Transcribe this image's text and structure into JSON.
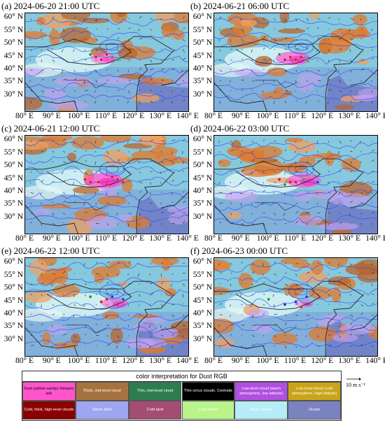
{
  "panels": [
    {
      "title": "(a) 2024-06-20 21:00 UTC",
      "dust": "weak",
      "points": [
        [
          104,
          46,
          "g"
        ],
        [
          106,
          45,
          "r"
        ],
        [
          108,
          44,
          "r"
        ],
        [
          110,
          46,
          "r"
        ],
        [
          112,
          45,
          "g"
        ],
        [
          114,
          44,
          "g"
        ]
      ]
    },
    {
      "title": "(b) 2024-06-21 06:00 UTC",
      "dust": "moderate",
      "points": [
        [
          104,
          46,
          "g"
        ],
        [
          106,
          44,
          "r"
        ],
        [
          108,
          45,
          "r"
        ],
        [
          110,
          44,
          "r"
        ],
        [
          112,
          45,
          "r"
        ],
        [
          114,
          44,
          "g"
        ]
      ]
    },
    {
      "title": "(c) 2024-06-21 12:00 UTC",
      "dust": "strong",
      "points": [
        [
          102,
          45,
          "r"
        ],
        [
          104,
          44,
          "r"
        ],
        [
          107,
          44,
          "r"
        ],
        [
          110,
          43,
          "r"
        ],
        [
          112,
          46,
          "r"
        ],
        [
          114,
          45,
          "r"
        ],
        [
          116,
          44,
          "r"
        ]
      ]
    },
    {
      "title": "(d) 2024-06-22 03:00 UTC",
      "dust": "moderate",
      "points": [
        [
          104,
          45,
          "r"
        ],
        [
          106,
          43,
          "g"
        ],
        [
          108,
          44,
          "r"
        ],
        [
          110,
          44,
          "r"
        ],
        [
          113,
          45,
          "g"
        ],
        [
          118,
          44,
          "b"
        ]
      ]
    },
    {
      "title": "(e) 2024-06-22 12:00 UTC",
      "dust": "weak",
      "points": [
        [
          104,
          47,
          "g"
        ],
        [
          108,
          45,
          "r"
        ],
        [
          110,
          46,
          "r"
        ],
        [
          112,
          47,
          "b"
        ],
        [
          116,
          46,
          "b"
        ]
      ]
    },
    {
      "title": "(f) 2024-06-23 00:00 UTC",
      "dust": "faint",
      "points": [
        [
          100,
          46,
          "g"
        ],
        [
          106,
          44,
          "b"
        ],
        [
          110,
          45,
          "b"
        ],
        [
          112,
          43,
          "r"
        ],
        [
          114,
          47,
          "b"
        ]
      ]
    }
  ],
  "axes": {
    "y_labels": [
      "60° N",
      "55° N",
      "50° N",
      "45° N",
      "40° N",
      "35° N",
      "30° N"
    ],
    "x_labels": [
      "80° E",
      "90° E",
      "100° E",
      "110° E",
      "120° E",
      "130° E",
      "140° E"
    ]
  },
  "legend": {
    "title": "color interpretation for Dust RGB",
    "row1": [
      {
        "text": "Dust (yellow sandy) Volcanic ash",
        "color": "#ff55cc",
        "fg": "#000000"
      },
      {
        "text": "Thick, mid-level cloud",
        "color": "#a6733f",
        "fg": "#ffffff"
      },
      {
        "text": "Thin, mid-level cloud",
        "color": "#2e7d4f",
        "fg": "#ffffff"
      },
      {
        "text": "Thin cirrus clouds. Contrails",
        "color": "#000000",
        "fg": "#ffffff"
      },
      {
        "text": "Low-level cloud (warm atmosphere, low latitude)",
        "color": "#b14fe0",
        "fg": "#ffffff"
      },
      {
        "text": "Low-level cloud (cold atmosphere, high latitude)",
        "color": "#c9a419",
        "fg": "#ffffff"
      }
    ],
    "row2": [
      {
        "text": "Cold, thick, high-level clouds",
        "color": "#8b0000",
        "fg": "#ffffff"
      },
      {
        "text": "Warm land",
        "color": "#9ea6f2",
        "fg": "#ffffff"
      },
      {
        "text": "Cold land",
        "color": "#a34d73",
        "fg": "#ffffff"
      },
      {
        "text": "Cold desert",
        "color": "#b9f48a",
        "fg": "#ffffff"
      },
      {
        "text": "Warm desert",
        "color": "#b6ecf7",
        "fg": "#ffffff"
      },
      {
        "text": "Ocean",
        "color": "#7b82c0",
        "fg": "#ffffff"
      }
    ]
  },
  "wind_reference": "10 m s⁻¹",
  "colors": {
    "land": "#8fd4e8",
    "cloud": "#e0802f",
    "dust": "#ff4fd0",
    "contour": "#3344ff",
    "border": "#222222"
  }
}
